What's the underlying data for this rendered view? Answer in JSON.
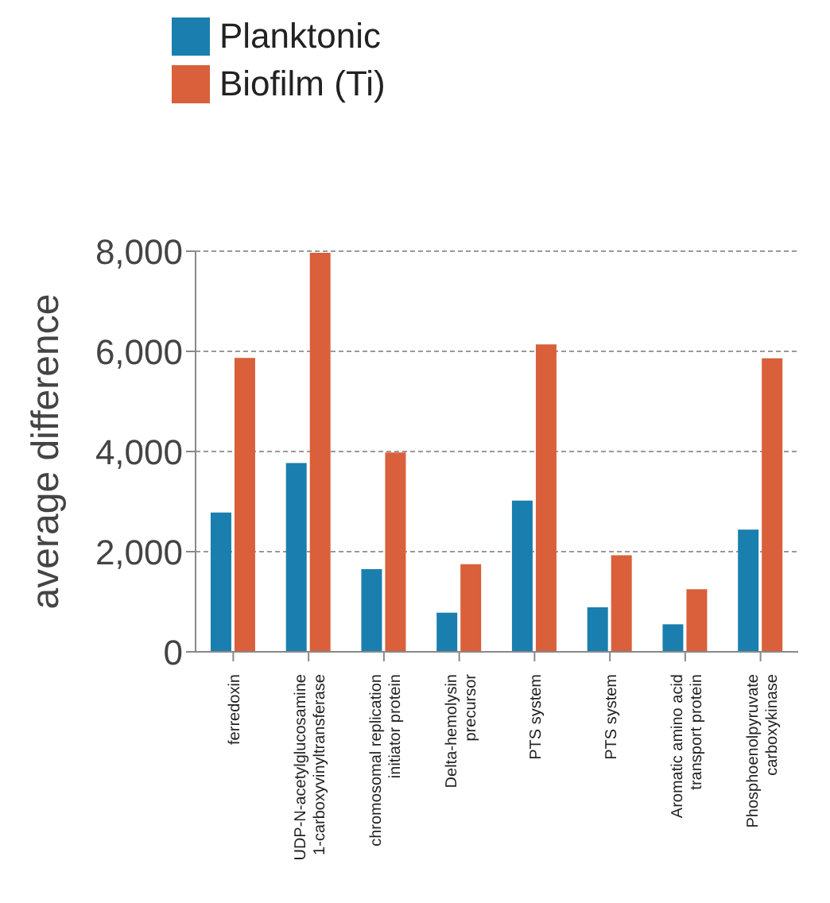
{
  "chart_data": {
    "type": "bar",
    "ylabel": "average difference",
    "categories": [
      "ferredoxin",
      "UDP-N-acetylglucosamine\n1-carboxyvinyltransferase",
      "chromosomal replication\ninitiator protein",
      "Delta-hemolysin\nprecursor",
      "PTS system",
      "PTS system",
      "Aromatic amino acid\ntransport protein",
      "Phosphoenolpyruvate\ncarboxykinase"
    ],
    "series": [
      {
        "name": "Planktonic",
        "color": "#1a7fae",
        "values": [
          2780,
          3770,
          1650,
          780,
          3020,
          890,
          550,
          2440
        ]
      },
      {
        "name": "Biofilm (Ti)",
        "color": "#d9603a",
        "values": [
          5870,
          7970,
          3980,
          1750,
          6140,
          1930,
          1250,
          5860
        ]
      }
    ],
    "ylim": [
      0,
      8000
    ],
    "yticks": [
      0,
      {
        "value": 2000,
        "label": "2,000"
      },
      {
        "value": 4000,
        "label": "4,000"
      },
      {
        "value": 6000,
        "label": "6,000"
      },
      {
        "value": 8000,
        "label": "8,000"
      }
    ],
    "grid": "y",
    "legend": "top left"
  }
}
